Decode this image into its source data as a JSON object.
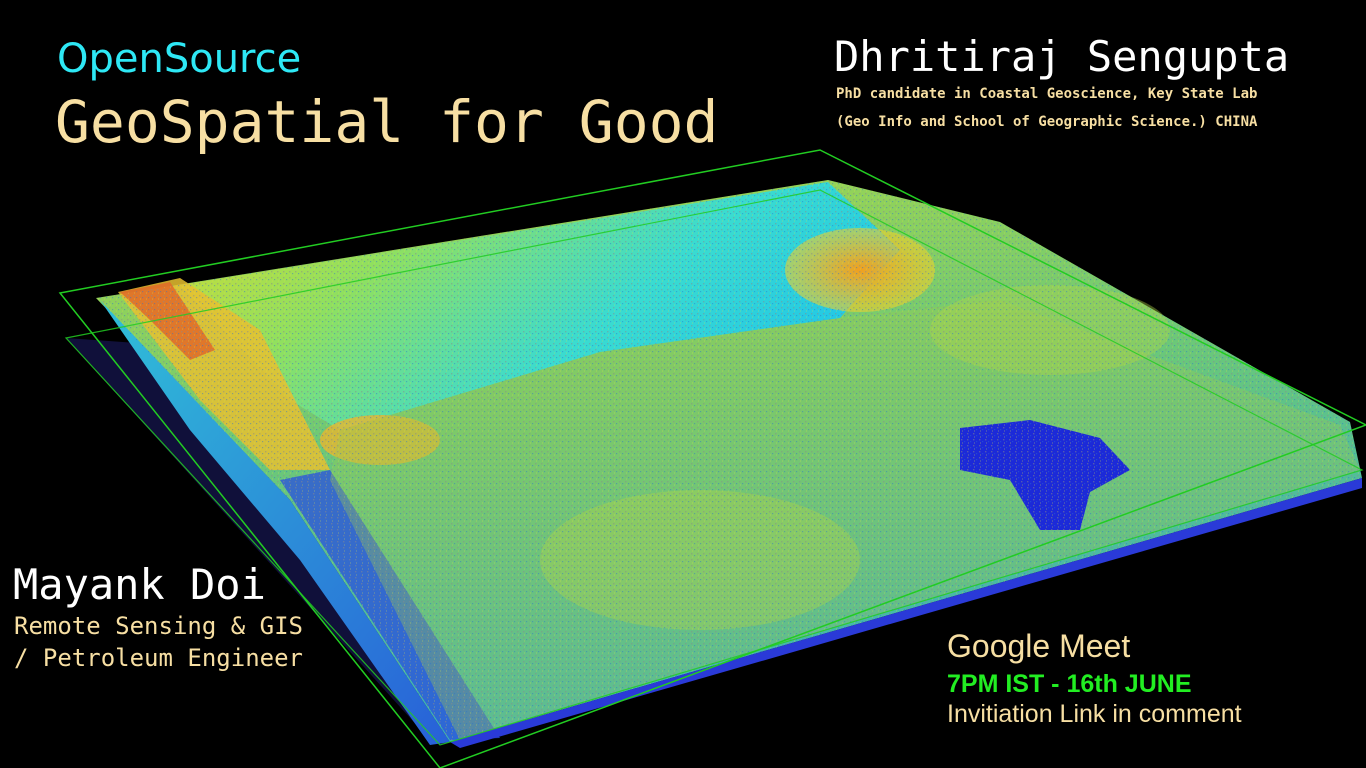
{
  "header": {
    "kicker": "OpenSource",
    "title": "GeoSpatial for Good"
  },
  "speaker_primary": {
    "name": "Dhritiraj Sengupta",
    "affiliation_line1": "PhD candidate in Coastal Geoscience, Key State Lab",
    "affiliation_line2": "(Geo Info and School of Geographic Science.) CHINA"
  },
  "speaker_secondary": {
    "name": "Mayank Doi",
    "role_line1": "Remote Sensing & GIS",
    "role_line2": "/ Petroleum Engineer"
  },
  "event": {
    "platform": "Google Meet",
    "time": "7PM IST - 16th JUNE",
    "note": "Invitiation Link in comment"
  },
  "background": {
    "image": "lidar-point-cloud-terrain",
    "colors": {
      "background": "#000000",
      "bounding_box": "#22cc22",
      "low": "#1a2ad6",
      "mid": "#22d8e8",
      "high": "#e8e030",
      "peak": "#e87a22"
    }
  }
}
